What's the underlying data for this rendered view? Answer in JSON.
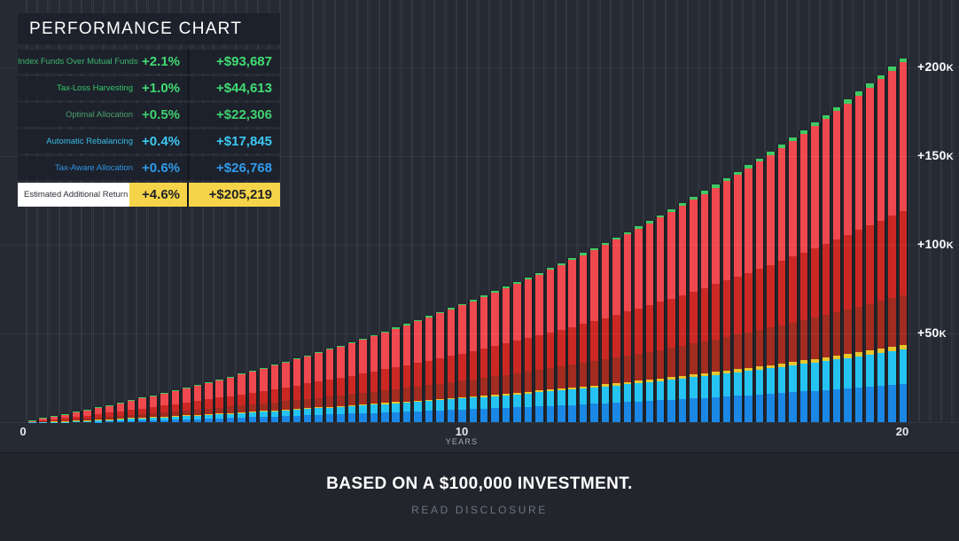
{
  "legend": {
    "title": "PERFORMANCE CHART",
    "rows": [
      {
        "label": "Index Funds Over Mutual Funds",
        "pct": "+2.1%",
        "amount": "+$93,687",
        "label_color": "#3db56b",
        "value_color": "#41dc73"
      },
      {
        "label": "Tax-Loss Harvesting",
        "pct": "+1.0%",
        "amount": "+$44,613",
        "label_color": "#35c96a",
        "value_color": "#41dc73"
      },
      {
        "label": "Optimal Allocation",
        "pct": "+0.5%",
        "amount": "+$22,306",
        "label_color": "#4aa06c",
        "value_color": "#3fd06f"
      },
      {
        "label": "Automatic Rebalancing",
        "pct": "+0.4%",
        "amount": "+$17,845",
        "label_color": "#38bce4",
        "value_color": "#3bc9f2"
      },
      {
        "label": "Tax-Aware Allocation",
        "pct": "+0.6%",
        "amount": "+$26,768",
        "label_color": "#2f96e8",
        "value_color": "#2f9ceb"
      }
    ],
    "total_row": {
      "label": "Estimated Additional Return",
      "pct": "+4.6%",
      "amount": "+$205,219",
      "label_bg": "#ffffff",
      "highlight_color": "#f6d449",
      "label_text_color": "#2b2f36",
      "value_text_color": "#1f2227"
    }
  },
  "chart_data": {
    "type": "bar",
    "title": "PERFORMANCE CHART",
    "xlabel": "YEARS",
    "x_ticks": [
      "0",
      "10",
      "20"
    ],
    "y_ticks": [
      "+50K",
      "+100K",
      "+150K",
      "+200K"
    ],
    "y_tick_values": [
      50000,
      100000,
      150000,
      200000
    ],
    "x_range_years": [
      0,
      20
    ],
    "ylim": [
      0,
      240000
    ],
    "grid": true,
    "legend_position": "top-left",
    "bars_count": 80,
    "bar_interval_years": 0.25,
    "final_total": 205219,
    "annual_growth_factor": 1.076,
    "estimated_total_by_year": [
      4687,
      9731,
      15152,
      21000,
      27284,
      34043,
      41320,
      49152,
      57580,
      66644,
      76395,
      86885,
      98177,
      110327,
      123397,
      137463,
      152599,
      168883,
      186404,
      205219
    ],
    "stack_layers_bottom_to_top": [
      {
        "name": "blue",
        "color": "#1b87e5",
        "fraction": 0.105
      },
      {
        "name": "cyan",
        "color": "#25c3f2",
        "fraction": 0.094
      },
      {
        "name": "yellow-sliver",
        "color": "#e7c62e",
        "fraction": 0.012
      },
      {
        "name": "maroon",
        "color": "#a12c1f",
        "fraction": 0.138
      },
      {
        "name": "dark-red",
        "color": "#cc2823",
        "fraction": 0.232
      },
      {
        "name": "light-red",
        "color": "#f0484f",
        "fraction": 0.407
      },
      {
        "name": "green-cap",
        "color": "#3ecb63",
        "fraction": 0.012
      }
    ]
  },
  "footer": {
    "based_on": "BASED ON A $100,000 INVESTMENT.",
    "disclosure": "READ DISCLOSURE"
  }
}
